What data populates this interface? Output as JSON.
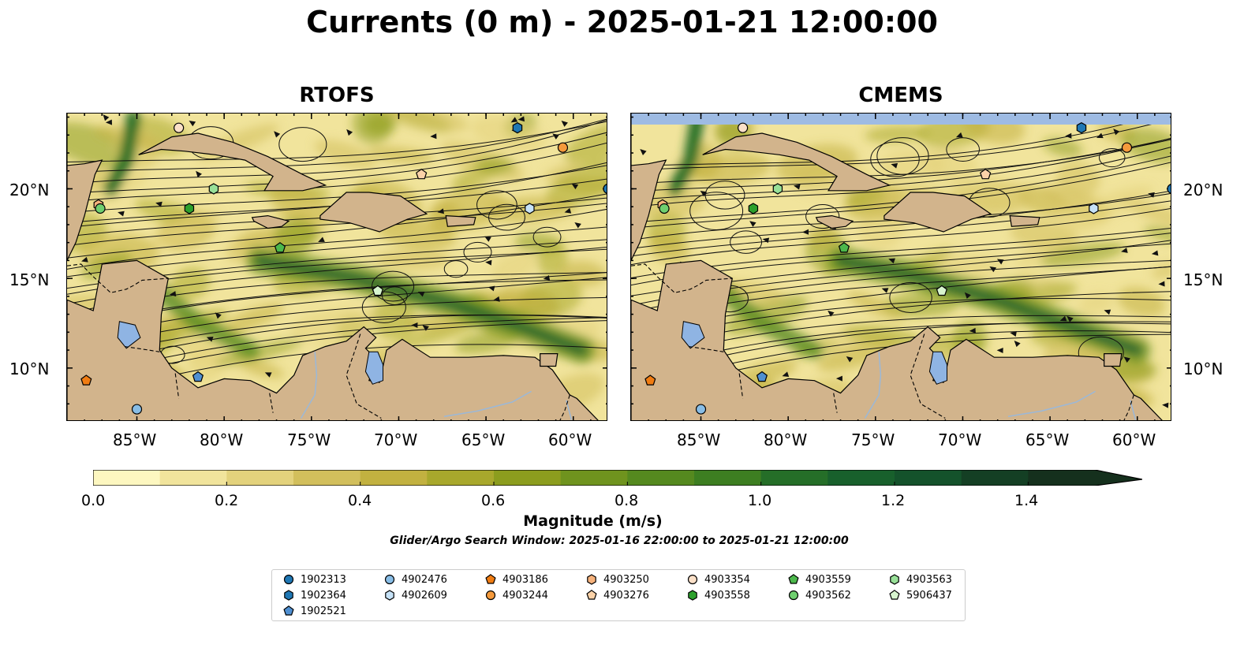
{
  "title": "Currents (0 m) - 2025-01-21 12:00:00",
  "panels": [
    {
      "title": "RTOFS"
    },
    {
      "title": "CMEMS"
    }
  ],
  "axes": {
    "lon_ticks": [
      "85°W",
      "80°W",
      "75°W",
      "70°W",
      "65°W",
      "60°W"
    ],
    "lat_ticks": [
      "20°N",
      "15°N",
      "10°N"
    ],
    "lon_range": [
      -89,
      -58
    ],
    "lat_range": [
      7,
      24.2
    ]
  },
  "colorbar": {
    "label": "Magnitude (m/s)",
    "ticks": [
      "0.0",
      "0.2",
      "0.4",
      "0.6",
      "0.8",
      "1.0",
      "1.2",
      "1.4"
    ],
    "range": [
      0,
      1.5
    ],
    "extend": "max",
    "colors": [
      "#fdf7c0",
      "#f1e49c",
      "#e3d27c",
      "#d2bf5c",
      "#c2b140",
      "#a8a82c",
      "#8c9d1e",
      "#6f931e",
      "#55891f",
      "#3d7e21",
      "#256e28",
      "#18602c",
      "#14522b",
      "#143f24",
      "#15301d"
    ]
  },
  "search_window": "Glider/Argo Search Window: 2025-01-16 22:00:00 to 2025-01-21 12:00:00",
  "colors": {
    "land": "#d2b48c",
    "water_body": "#8fb4e3",
    "missing_band": "#9ebbe3"
  },
  "floats": [
    {
      "id": "1902313",
      "marker": "circle",
      "color": "#1f77b4",
      "lon": -58.0,
      "lat": 20.0
    },
    {
      "id": "1902364",
      "marker": "hexagon",
      "color": "#1f77b4",
      "lon": -63.2,
      "lat": 23.4
    },
    {
      "id": "1902521",
      "marker": "pentagon",
      "color": "#4f8fd1",
      "lon": -81.5,
      "lat": 9.5
    },
    {
      "id": "4902476",
      "marker": "circle",
      "color": "#88bde6",
      "lon": -85.0,
      "lat": 7.7
    },
    {
      "id": "4902609",
      "marker": "hexagon",
      "color": "#c6e2f7",
      "lon": -62.5,
      "lat": 18.9
    },
    {
      "id": "4903186",
      "marker": "pentagon",
      "color": "#f07c12",
      "lon": -87.9,
      "lat": 9.3
    },
    {
      "id": "4903244",
      "marker": "circle",
      "color": "#f59a3c",
      "lon": -60.6,
      "lat": 22.3
    },
    {
      "id": "4903250",
      "marker": "hexagon",
      "color": "#f6b27c",
      "lon": -87.2,
      "lat": 19.1
    },
    {
      "id": "4903276",
      "marker": "pentagon",
      "color": "#fbd2a8",
      "lon": -68.7,
      "lat": 20.8
    },
    {
      "id": "4903354",
      "marker": "circle",
      "color": "#fbe0c8",
      "lon": -82.6,
      "lat": 23.4
    },
    {
      "id": "4903558",
      "marker": "hexagon",
      "color": "#2ca02c",
      "lon": -82.0,
      "lat": 18.9
    },
    {
      "id": "4903559",
      "marker": "pentagon",
      "color": "#4cb84c",
      "lon": -76.8,
      "lat": 16.7
    },
    {
      "id": "4903562",
      "marker": "circle",
      "color": "#6fcf6f",
      "lon": -87.1,
      "lat": 18.9
    },
    {
      "id": "4903563",
      "marker": "hexagon",
      "color": "#98e098",
      "lon": -80.6,
      "lat": 20.0
    },
    {
      "id": "5906437",
      "marker": "pentagon",
      "color": "#d8f5cf",
      "lon": -71.2,
      "lat": 14.3
    }
  ]
}
